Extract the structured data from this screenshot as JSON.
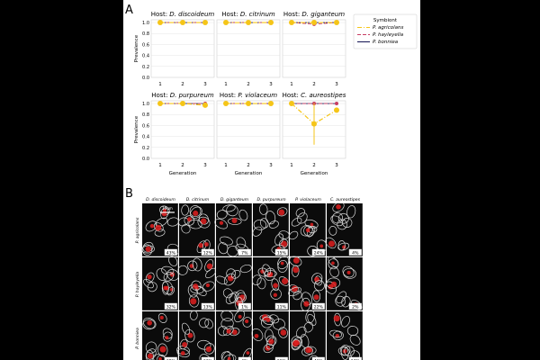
{
  "panel_a": {
    "label": "A",
    "ylabel": "Prevalence",
    "xlabel": "Generation",
    "yticks": [
      "1.0",
      "0.8",
      "0.6",
      "0.4",
      "0.2",
      "0.0"
    ],
    "xticks": [
      "1",
      "2",
      "3"
    ],
    "legend": {
      "title": "Symbiont",
      "position": "right",
      "entries": [
        {
          "label": "P. agricolans",
          "color": "#f5c518",
          "style": "dashdot"
        },
        {
          "label": "P. hayleyella",
          "color": "#c83d63",
          "style": "dashed"
        },
        {
          "label": "P. bonniea",
          "color": "#1f1f5b",
          "style": "solid"
        }
      ]
    }
  },
  "panel_b": {
    "label": "B",
    "columns": [
      "D. discoideum",
      "D. citrinum",
      "D. giganteum",
      "D. purpureum",
      "P. violaceum",
      "C. aureostipes"
    ],
    "rows": [
      "P. agricolans",
      "P. hayleyella",
      "P. bonniea"
    ],
    "scale_bar": "10um",
    "percentages": [
      [
        "43%",
        "12%",
        "7%",
        "15%",
        "24%",
        "4%"
      ],
      [
        "32%",
        "13%",
        "1%",
        "11%",
        "22%",
        "2%"
      ],
      [
        "39%",
        "33%",
        "4%",
        "21%",
        "46%",
        "13%"
      ]
    ]
  },
  "chart_data": [
    {
      "type": "line",
      "title": "Host: D. discoideum",
      "x": [
        1,
        2,
        3
      ],
      "ylim": [
        0,
        1.05
      ],
      "xlabel": "",
      "ylabel": "Prevalence",
      "series": [
        {
          "name": "P. agricolans",
          "values": [
            1,
            1,
            1
          ]
        },
        {
          "name": "P. hayleyella",
          "values": [
            1,
            1,
            1
          ]
        },
        {
          "name": "P. bonniea",
          "values": [
            1,
            1,
            1
          ]
        }
      ]
    },
    {
      "type": "line",
      "title": "Host: D. citrinum",
      "x": [
        1,
        2,
        3
      ],
      "ylim": [
        0,
        1.05
      ],
      "xlabel": "",
      "ylabel": "",
      "series": [
        {
          "name": "P. agricolans",
          "values": [
            1,
            1,
            1
          ]
        },
        {
          "name": "P. hayleyella",
          "values": [
            1,
            1,
            1
          ]
        },
        {
          "name": "P. bonniea",
          "values": [
            1,
            1,
            1
          ]
        }
      ]
    },
    {
      "type": "line",
      "title": "Host: D. giganteum",
      "x": [
        1,
        2,
        3
      ],
      "ylim": [
        0,
        1.05
      ],
      "xlabel": "",
      "ylabel": "",
      "series": [
        {
          "name": "P. agricolans",
          "values": [
            1,
            1,
            1
          ]
        },
        {
          "name": "P. hayleyella",
          "values": [
            1,
            0.97,
            1
          ]
        },
        {
          "name": "P. bonniea",
          "values": [
            1,
            1,
            1
          ]
        }
      ]
    },
    {
      "type": "line",
      "title": "Host: D. purpureum",
      "x": [
        1,
        2,
        3
      ],
      "ylim": [
        0,
        1.05
      ],
      "xlabel": "Generation",
      "ylabel": "Prevalence",
      "series": [
        {
          "name": "P. agricolans",
          "values": [
            1,
            1,
            0.97
          ]
        },
        {
          "name": "P. hayleyella",
          "values": [
            1,
            1,
            1
          ]
        },
        {
          "name": "P. bonniea",
          "values": [
            1,
            1,
            1
          ]
        }
      ]
    },
    {
      "type": "line",
      "title": "Host: P. violaceum",
      "x": [
        1,
        2,
        3
      ],
      "ylim": [
        0,
        1.05
      ],
      "xlabel": "Generation",
      "ylabel": "",
      "series": [
        {
          "name": "P. agricolans",
          "values": [
            1,
            1,
            1
          ]
        },
        {
          "name": "P. hayleyella",
          "values": [
            1,
            1,
            1
          ]
        },
        {
          "name": "P. bonniea",
          "values": [
            1,
            1,
            1
          ]
        }
      ]
    },
    {
      "type": "line",
      "title": "Host: C. aureostipes",
      "x": [
        1,
        2,
        3
      ],
      "ylim": [
        0,
        1.05
      ],
      "xlabel": "Generation",
      "ylabel": "",
      "series": [
        {
          "name": "P. agricolans",
          "values": [
            1,
            0.63,
            0.88
          ],
          "error": [
            0,
            0.38,
            0.04
          ]
        },
        {
          "name": "P. hayleyella",
          "values": [
            1,
            1,
            1
          ]
        },
        {
          "name": "P. bonniea",
          "values": [
            1,
            1,
            1
          ]
        }
      ]
    }
  ]
}
